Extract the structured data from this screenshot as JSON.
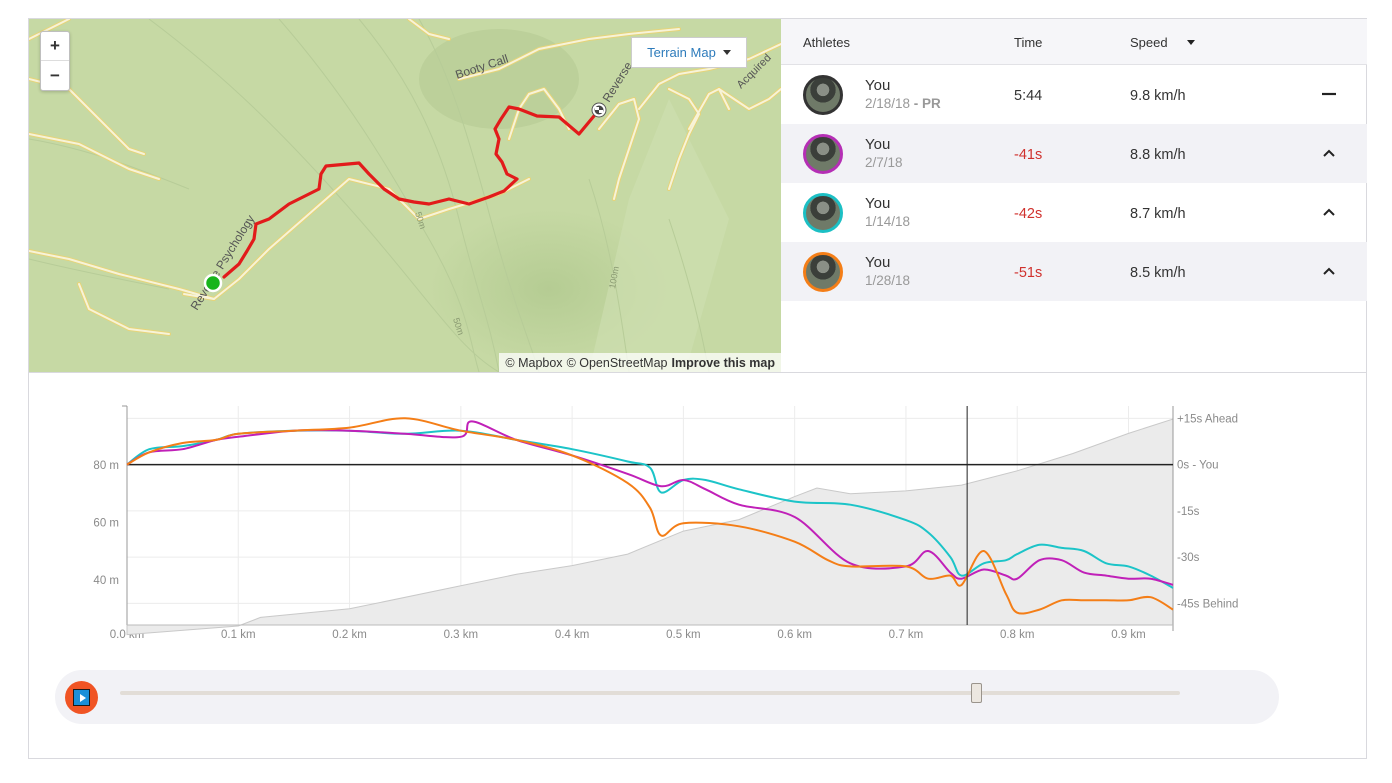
{
  "map": {
    "zoom_in": "+",
    "zoom_out": "−",
    "layer_button": "Terrain Map",
    "labels": {
      "booty_call": "Booty Call",
      "reverse_top": "Reverse",
      "reverse_psychology": "Reverse Psychology",
      "acquired": "Acquired",
      "contour_50a": "50m",
      "contour_50b": "50m",
      "contour_100": "100m"
    },
    "attribution": {
      "mapbox": "© Mapbox",
      "osm": "© OpenStreetMap",
      "improve": "Improve this map"
    }
  },
  "leaderboard": {
    "headers": {
      "athletes": "Athletes",
      "time": "Time",
      "speed": "Speed"
    },
    "rows": [
      {
        "name": "You",
        "date": "2/18/18",
        "pr": " - PR",
        "time": "5:44",
        "speed": "9.8 km/h",
        "ring": "#333333",
        "state": "dash"
      },
      {
        "name": "You",
        "date": "2/7/18",
        "pr": "",
        "time": "-41s",
        "speed": "8.8 km/h",
        "ring": "#b52fb5",
        "state": "up"
      },
      {
        "name": "You",
        "date": "1/14/18",
        "pr": "",
        "time": "-42s",
        "speed": "8.7 km/h",
        "ring": "#1cbfc4",
        "state": "up"
      },
      {
        "name": "You",
        "date": "1/28/18",
        "pr": "",
        "time": "-51s",
        "speed": "8.5 km/h",
        "ring": "#f47e17",
        "state": "up"
      }
    ]
  },
  "chart_data": {
    "type": "line",
    "x_unit": "km",
    "x_ticks": [
      "0.0 km",
      "0.1 km",
      "0.2 km",
      "0.3 km",
      "0.4 km",
      "0.5 km",
      "0.6 km",
      "0.7 km",
      "0.8 km",
      "0.9 km"
    ],
    "xlim": [
      0,
      0.94
    ],
    "left_axis": {
      "ticks": [
        "80 m",
        "60 m",
        "40 m"
      ],
      "values": [
        80,
        60,
        40
      ]
    },
    "right_axis": {
      "ticks": [
        "+15s Ahead",
        "0s - You",
        "-15s",
        "-30s",
        "-45s Behind"
      ],
      "values": [
        15,
        0,
        -15,
        -30,
        -45
      ],
      "ylim": [
        -52,
        19
      ]
    },
    "elevation": {
      "x": [
        0,
        0.1,
        0.12,
        0.2,
        0.3,
        0.35,
        0.4,
        0.45,
        0.5,
        0.55,
        0.6,
        0.62,
        0.65,
        0.7,
        0.75,
        0.8,
        0.85,
        0.9,
        0.94
      ],
      "y": [
        21,
        24,
        27,
        30,
        38,
        42,
        45,
        49,
        57,
        61,
        69,
        72,
        70,
        71,
        73,
        78,
        84,
        91,
        96
      ]
    },
    "series": [
      {
        "color": "#1cc4c8",
        "x": [
          0,
          0.02,
          0.05,
          0.08,
          0.1,
          0.15,
          0.2,
          0.25,
          0.3,
          0.35,
          0.4,
          0.45,
          0.47,
          0.48,
          0.5,
          0.52,
          0.55,
          0.6,
          0.65,
          0.7,
          0.72,
          0.74,
          0.75,
          0.77,
          0.79,
          0.8,
          0.82,
          0.84,
          0.86,
          0.88,
          0.9,
          0.92,
          0.94
        ],
        "y": [
          0,
          5,
          6,
          8,
          10,
          11,
          11,
          10,
          11,
          8,
          5,
          1,
          -1,
          -9,
          -5,
          -5,
          -8,
          -12,
          -13,
          -18,
          -22,
          -30,
          -36,
          -32,
          -31,
          -29,
          -26,
          -27,
          -28,
          -32,
          -33,
          -36,
          -40
        ]
      },
      {
        "color": "#c020b8",
        "x": [
          0,
          0.02,
          0.05,
          0.08,
          0.1,
          0.15,
          0.2,
          0.25,
          0.3,
          0.31,
          0.35,
          0.4,
          0.45,
          0.48,
          0.5,
          0.52,
          0.55,
          0.6,
          0.65,
          0.7,
          0.72,
          0.74,
          0.75,
          0.77,
          0.79,
          0.8,
          0.82,
          0.84,
          0.86,
          0.88,
          0.9,
          0.92,
          0.94
        ],
        "y": [
          0,
          4,
          5,
          8,
          9,
          11,
          11,
          10,
          9,
          14,
          8,
          3,
          -3,
          -7,
          -5,
          -8,
          -13,
          -17,
          -32,
          -33,
          -28,
          -35,
          -37,
          -34,
          -36,
          -37,
          -31,
          -31,
          -35,
          -36,
          -37,
          -37,
          -39
        ]
      },
      {
        "color": "#f47e17",
        "x": [
          0,
          0.02,
          0.05,
          0.08,
          0.1,
          0.15,
          0.2,
          0.25,
          0.3,
          0.35,
          0.4,
          0.45,
          0.47,
          0.48,
          0.5,
          0.55,
          0.6,
          0.63,
          0.65,
          0.7,
          0.72,
          0.74,
          0.75,
          0.77,
          0.79,
          0.8,
          0.82,
          0.84,
          0.86,
          0.88,
          0.9,
          0.92,
          0.94
        ],
        "y": [
          0,
          4,
          7,
          8,
          10,
          11,
          12,
          15,
          11,
          8,
          3,
          -6,
          -14,
          -23,
          -19,
          -20,
          -25,
          -31,
          -33,
          -33,
          -37,
          -36,
          -39,
          -28,
          -42,
          -48,
          -47,
          -44,
          -44,
          -44,
          -44,
          -43,
          -47
        ]
      }
    ],
    "cursor_x": 0.755
  }
}
